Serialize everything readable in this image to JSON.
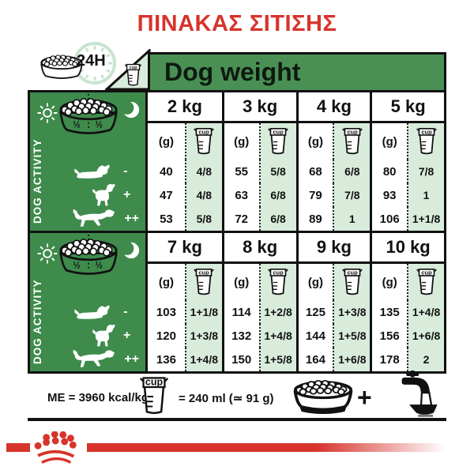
{
  "title": "ΠΙΝΑΚΑΣ ΣΙΤΙΣΗΣ",
  "colors": {
    "red": "#d7342c",
    "band_green": "#4a9055",
    "sidebar_green": "#3e8b4c",
    "light_green": "#d9ecdc",
    "clock_green": "#c9e4cf",
    "ink": "#111111"
  },
  "header": {
    "hours_label": "24H",
    "dog_weight_label": "Dog weight",
    "cup_label": "cup",
    "icons": [
      "kibble-bowl-icon",
      "clock-icon",
      "measuring-cup-icon"
    ]
  },
  "sidebar": {
    "activity_label": "DOG ACTIVITY",
    "half_left": "½",
    "half_right": "½",
    "activity_levels": [
      "-",
      "+",
      "++"
    ],
    "icons": [
      "sun-icon",
      "kibble-bowl-half-icon",
      "moon-icon",
      "lying-dog-icon",
      "standing-dog-icon",
      "running-dog-icon"
    ]
  },
  "table": {
    "units": {
      "grams": "(g)",
      "cup": "cup"
    },
    "blocks": [
      {
        "weights": [
          "2 kg",
          "3 kg",
          "4 kg",
          "5 kg"
        ],
        "rows": [
          {
            "level": "-",
            "values": [
              [
                "40",
                "4/8"
              ],
              [
                "55",
                "5/8"
              ],
              [
                "68",
                "6/8"
              ],
              [
                "80",
                "7/8"
              ]
            ]
          },
          {
            "level": "+",
            "values": [
              [
                "47",
                "4/8"
              ],
              [
                "63",
                "6/8"
              ],
              [
                "79",
                "7/8"
              ],
              [
                "93",
                "1"
              ]
            ]
          },
          {
            "level": "++",
            "values": [
              [
                "53",
                "5/8"
              ],
              [
                "72",
                "6/8"
              ],
              [
                "89",
                "1"
              ],
              [
                "106",
                "1+1/8"
              ]
            ]
          }
        ]
      },
      {
        "weights": [
          "7 kg",
          "8 kg",
          "9 kg",
          "10 kg"
        ],
        "rows": [
          {
            "level": "-",
            "values": [
              [
                "103",
                "1+1/8"
              ],
              [
                "114",
                "1+2/8"
              ],
              [
                "125",
                "1+3/8"
              ],
              [
                "135",
                "1+4/8"
              ]
            ]
          },
          {
            "level": "+",
            "values": [
              [
                "120",
                "1+3/8"
              ],
              [
                "132",
                "1+4/8"
              ],
              [
                "144",
                "1+5/8"
              ],
              [
                "156",
                "1+6/8"
              ]
            ]
          },
          {
            "level": "++",
            "values": [
              [
                "136",
                "1+4/8"
              ],
              [
                "150",
                "1+5/8"
              ],
              [
                "164",
                "1+6/8"
              ],
              [
                "178",
                "2"
              ]
            ]
          }
        ]
      }
    ]
  },
  "footer": {
    "me_label": "ME = 3960 kcal/kg",
    "cup_equals": "= 240 ml (≃ 91 g)",
    "plus": "+",
    "icons": [
      "measuring-cup-icon",
      "kibble-bowl-icon",
      "water-tap-icon"
    ]
  },
  "chart_data": {
    "type": "table",
    "title": "ΠΙΝΑΚΑΣ ΣΙΤΙΣΗΣ",
    "columns": [
      "dog_weight",
      "dog_activity",
      "grams_per_day",
      "cups_per_day"
    ],
    "rows": [
      [
        "2 kg",
        "-",
        40,
        "4/8"
      ],
      [
        "2 kg",
        "+",
        47,
        "4/8"
      ],
      [
        "2 kg",
        "++",
        53,
        "5/8"
      ],
      [
        "3 kg",
        "-",
        55,
        "5/8"
      ],
      [
        "3 kg",
        "+",
        63,
        "6/8"
      ],
      [
        "3 kg",
        "++",
        72,
        "6/8"
      ],
      [
        "4 kg",
        "-",
        68,
        "6/8"
      ],
      [
        "4 kg",
        "+",
        79,
        "7/8"
      ],
      [
        "4 kg",
        "++",
        89,
        "1"
      ],
      [
        "5 kg",
        "-",
        80,
        "7/8"
      ],
      [
        "5 kg",
        "+",
        93,
        "1"
      ],
      [
        "5 kg",
        "++",
        106,
        "1+1/8"
      ],
      [
        "7 kg",
        "-",
        103,
        "1+1/8"
      ],
      [
        "7 kg",
        "+",
        120,
        "1+3/8"
      ],
      [
        "7 kg",
        "++",
        136,
        "1+4/8"
      ],
      [
        "8 kg",
        "-",
        114,
        "1+2/8"
      ],
      [
        "8 kg",
        "+",
        132,
        "1+4/8"
      ],
      [
        "8 kg",
        "++",
        150,
        "1+5/8"
      ],
      [
        "9 kg",
        "-",
        125,
        "1+3/8"
      ],
      [
        "9 kg",
        "+",
        144,
        "1+5/8"
      ],
      [
        "9 kg",
        "++",
        164,
        "1+6/8"
      ],
      [
        "10 kg",
        "-",
        135,
        "1+4/8"
      ],
      [
        "10 kg",
        "+",
        156,
        "1+6/8"
      ],
      [
        "10 kg",
        "++",
        178,
        "2"
      ]
    ],
    "notes": [
      "24H",
      "½ + ½",
      "ME = 3960 kcal/kg",
      "cup = 240 ml (≃ 91 g)"
    ]
  }
}
